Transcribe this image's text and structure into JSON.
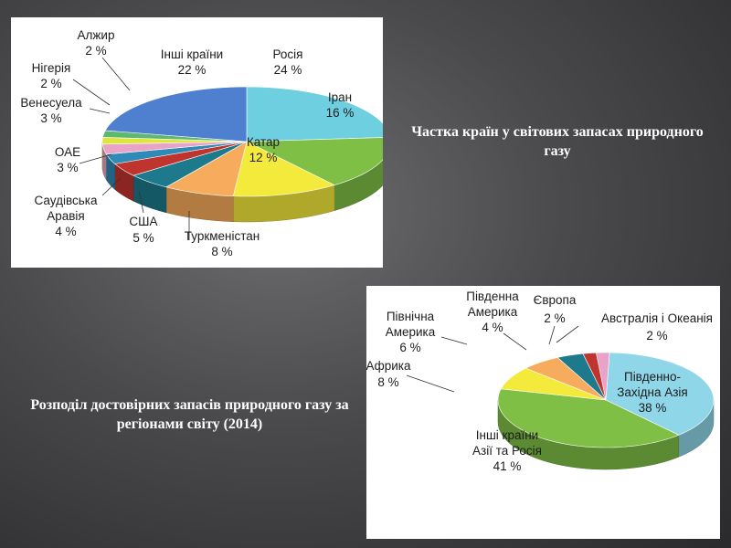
{
  "slide": {
    "caption_world": "Частка країн у світових запасах природного газу",
    "caption_regions": "Розподіл достовірних запасів природного газу за регіонами світу (2014)"
  },
  "chart_data": [
    {
      "type": "pie",
      "title": "",
      "unit": "%",
      "slices": [
        {
          "name": "Росія",
          "label_name": "Росія",
          "label_value": "24 %",
          "value": 24,
          "color": "#6ecfe0"
        },
        {
          "name": "Іран",
          "label_name": "Іран",
          "label_value": "16 %",
          "value": 16,
          "color": "#7fbf46"
        },
        {
          "name": "Катар",
          "label_name": "Катар",
          "label_value": "12 %",
          "value": 12,
          "color": "#f4ea3c"
        },
        {
          "name": "Туркменістан",
          "label_name": "Туркменістан",
          "label_value": "8 %",
          "value": 8,
          "color": "#f7ab5c"
        },
        {
          "name": "США",
          "label_name": "США",
          "label_value": "5 %",
          "value": 5,
          "color": "#1c7a8c"
        },
        {
          "name": "Саудівська Аравія",
          "label_name": "Саудівська Аравія",
          "label_value": "4 %",
          "value": 4,
          "color": "#c0342e"
        },
        {
          "name": "ОАЕ",
          "label_name": "ОАЕ",
          "label_value": "3 %",
          "value": 3,
          "color": "#2f8ab5"
        },
        {
          "name": "Венесуела",
          "label_name": "Венесуела",
          "label_value": "3 %",
          "value": 3,
          "color": "#e9a3c9"
        },
        {
          "name": "Нігерія",
          "label_name": "Нігерія",
          "label_value": "2 %",
          "value": 2,
          "color": "#dfe63a"
        },
        {
          "name": "Алжир",
          "label_name": "Алжир",
          "label_value": "2 %",
          "value": 2,
          "color": "#5fb870"
        },
        {
          "name": "Інші країни",
          "label_name": "Інші країни",
          "label_value": "22 %",
          "value": 22,
          "color": "#4f7fcf"
        }
      ]
    },
    {
      "type": "pie",
      "title": "",
      "unit": "%",
      "slices": [
        {
          "name": "Південно-Західна Азія",
          "label_name": "Південно-Західна Азія",
          "label_value": "38 %",
          "value": 38,
          "color": "#8fd6e8"
        },
        {
          "name": "Інші країни Азії та Росія",
          "label_name": "Інші країни Азії та Росія",
          "label_value": "41 %",
          "value": 41,
          "color": "#7fbf46"
        },
        {
          "name": "Африка",
          "label_name": "Африка",
          "label_value": "8 %",
          "value": 8,
          "color": "#f4ea3c"
        },
        {
          "name": "Північна Америка",
          "label_name": "Північна Америка",
          "label_value": "6 %",
          "value": 6,
          "color": "#f7ab5c"
        },
        {
          "name": "Південна Америка",
          "label_name": "Південна Америка",
          "label_value": "4 %",
          "value": 4,
          "color": "#1c7a8c"
        },
        {
          "name": "Європа",
          "label_name": "Європа",
          "label_value": "2 %",
          "value": 2,
          "color": "#c0342e"
        },
        {
          "name": "Австралія і Океанія",
          "label_name": "Австралія і Океанія",
          "label_value": "2 %",
          "value": 2,
          "color": "#e9a3c9"
        }
      ]
    }
  ]
}
